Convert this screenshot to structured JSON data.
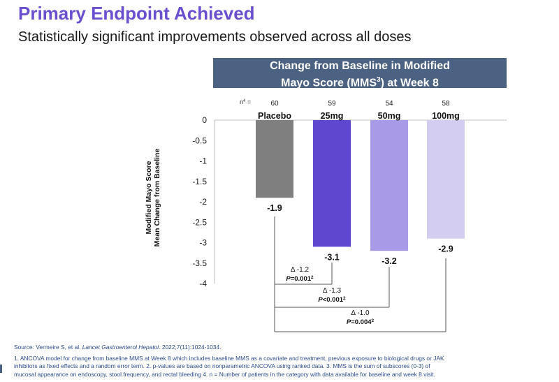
{
  "page": {
    "title": "Primary Endpoint Achieved",
    "subtitle": "Statistically significant improvements observed across all doses"
  },
  "chart_data": {
    "type": "bar",
    "title_line1": "Change from Baseline in Modified",
    "title_line2": "Mayo Score (MMS",
    "title_sup": "3",
    "title_line2_end": ") at Week 8",
    "ylabel_line1": "Modified Mayo Score",
    "ylabel_line2": "Mean Change from Baseline",
    "ylim": [
      -4,
      0
    ],
    "yticks": [
      "0",
      "-0.5",
      "-1",
      "-1.5",
      "-2",
      "-2.5",
      "-3",
      "-3.5",
      "-4"
    ],
    "n_label": "n",
    "n_label_sup": "4",
    "n_label_end": " =",
    "categories": [
      "Placebo",
      "25mg",
      "50mg",
      "100mg"
    ],
    "n_values": [
      "60",
      "59",
      "54",
      "58"
    ],
    "values": [
      -1.9,
      -3.1,
      -3.2,
      -2.9
    ],
    "value_labels": [
      "-1.9",
      "-3.1",
      "-3.2",
      "-2.9"
    ],
    "colors": [
      "#7f7f7f",
      "#5f48cf",
      "#a89ae6",
      "#d3cdf2"
    ],
    "comparisons": [
      {
        "delta": "Δ -1.2",
        "p": "=0.001",
        "sup": "2"
      },
      {
        "delta": "Δ -1.3",
        "p": "<0.001",
        "sup": "2"
      },
      {
        "delta": "Δ -1.0",
        "p": "=0.004",
        "sup": "2"
      }
    ],
    "p_letter": "P"
  },
  "footer": {
    "source_prefix": "Source: Vermeire S, et al. ",
    "source_journal": "Lancet Gastroenterol Hepatol",
    "source_suffix": ". 2022;7(11):1024-1034.",
    "note1": "1. ANCOVA model for change from baseline MMS at Week 8 which includes baseline MMS as a covariate and treatment, previous exposure to biological drugs or JAK",
    "note2": "inhibitors as fixed effects and a random error term. 2. p-values are based on nonparametric ANCOVA using ranked data. 3. MMS is the sum of subscores (0-3) of",
    "note3": "mucosal appearance on endoscopy, stool frequency, and rectal bleeding 4. n = Number of patients in the category with data available for baseline and week 8 visit."
  }
}
